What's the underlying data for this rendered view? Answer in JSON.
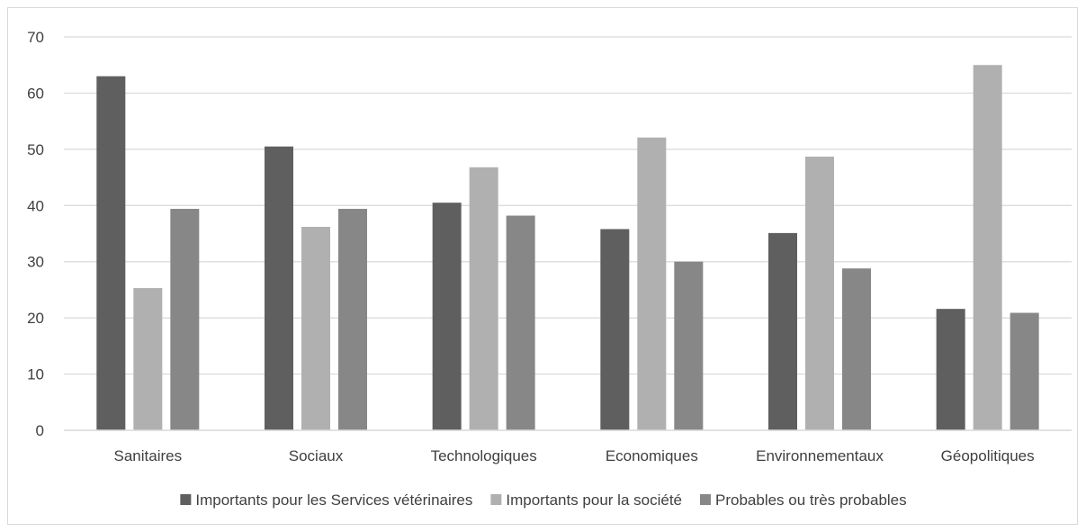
{
  "chart_data": {
    "type": "bar",
    "categories": [
      "Sanitaires",
      "Sociaux",
      "Technologiques",
      "Economiques",
      "Environnementaux",
      "Géopolitiques"
    ],
    "series": [
      {
        "name": "Importants pour les Services vétérinaires",
        "color": "#5f5f5f",
        "values": [
          63,
          50.5,
          40.5,
          35.8,
          35.1,
          21.6
        ]
      },
      {
        "name": "Importants pour la société",
        "color": "#b0b0b0",
        "values": [
          25.3,
          36.2,
          46.8,
          52.1,
          48.7,
          65.0
        ]
      },
      {
        "name": "Probables ou très probables",
        "color": "#878787",
        "values": [
          39.4,
          39.4,
          38.2,
          30.0,
          28.8,
          20.9
        ]
      }
    ],
    "ylim": [
      0,
      70
    ],
    "yticks": [
      "0",
      "10",
      "20",
      "30",
      "40",
      "50",
      "60",
      "70"
    ],
    "grid": true,
    "legend": "bottom"
  }
}
